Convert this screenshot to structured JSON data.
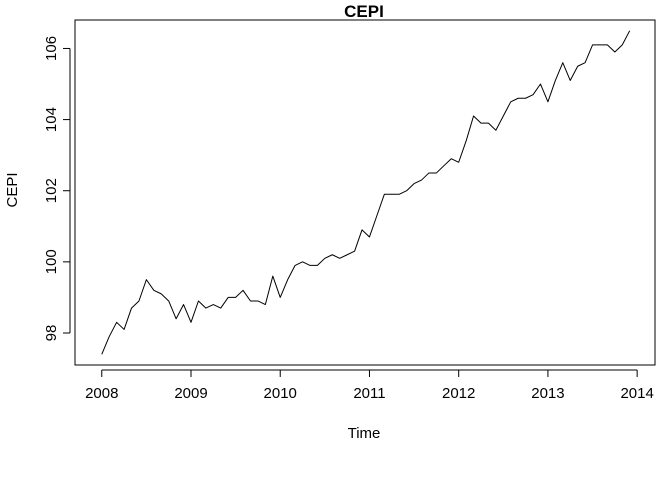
{
  "chart_data": {
    "type": "line",
    "title": "CEPI",
    "xlabel": "Time",
    "ylabel": "CEPI",
    "xlim": [
      2007.7,
      2014.2
    ],
    "ylim": [
      97.1,
      106.8
    ],
    "x_ticks": [
      2008,
      2009,
      2010,
      2011,
      2012,
      2013,
      2014
    ],
    "x_tick_labels": [
      "2008",
      "2009",
      "2010",
      "2011",
      "2012",
      "2013",
      "2014"
    ],
    "y_ticks": [
      98,
      100,
      102,
      104,
      106
    ],
    "y_tick_labels": [
      "98",
      "100",
      "102",
      "104",
      "106"
    ],
    "grid": false,
    "x_start": 2008,
    "frequency": 12,
    "series": [
      {
        "values": [
          97.4,
          97.9,
          98.3,
          98.1,
          98.7,
          98.9,
          99.5,
          99.2,
          99.1,
          98.9,
          98.4,
          98.8,
          98.3,
          98.9,
          98.7,
          98.8,
          98.7,
          99.0,
          99.0,
          99.2,
          98.9,
          98.9,
          98.8,
          99.6,
          99.0,
          99.5,
          99.9,
          100.0,
          99.9,
          99.9,
          100.1,
          100.2,
          100.1,
          100.2,
          100.3,
          100.9,
          100.7,
          101.3,
          101.9,
          101.9,
          101.9,
          102.0,
          102.2,
          102.3,
          102.5,
          102.5,
          102.7,
          102.9,
          102.8,
          103.4,
          104.1,
          103.9,
          103.9,
          103.7,
          104.1,
          104.5,
          104.6,
          104.6,
          104.7,
          105.0,
          104.5,
          105.1,
          105.6,
          105.1,
          105.5,
          105.6,
          106.1,
          106.1,
          106.1,
          105.9,
          106.1,
          106.5
        ]
      }
    ]
  }
}
